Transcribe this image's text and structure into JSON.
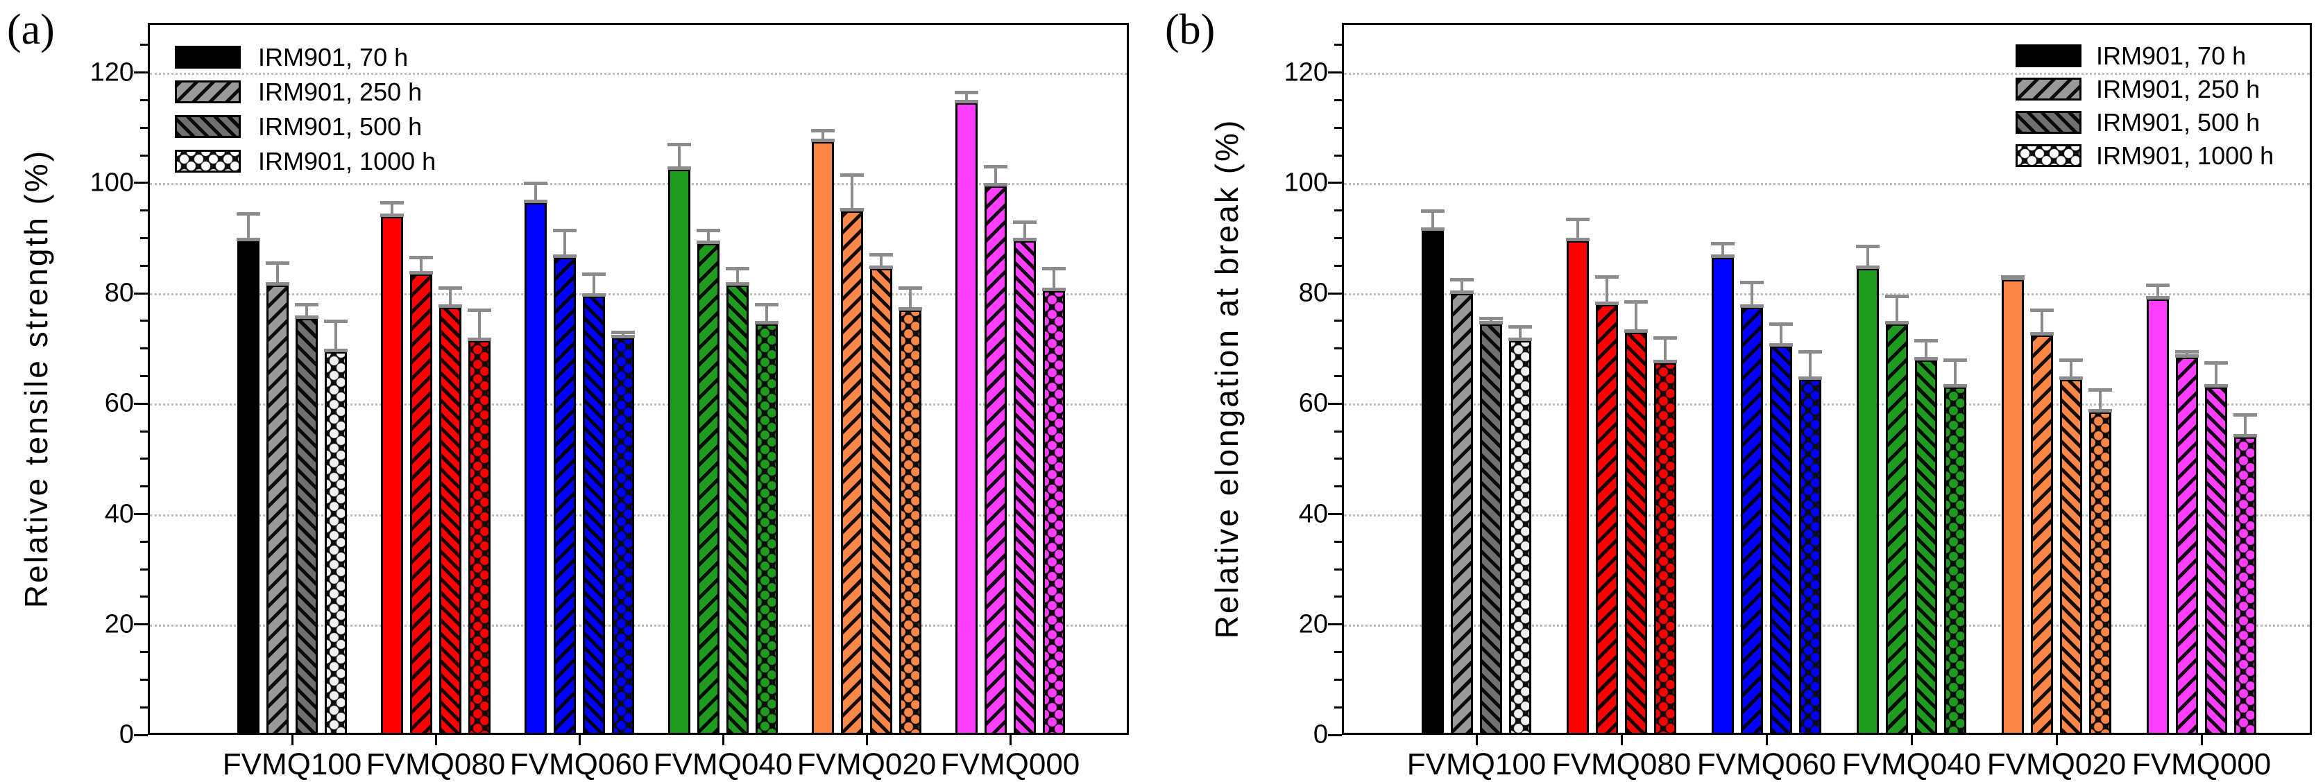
{
  "figure": {
    "panel_a_label": "(a)",
    "panel_b_label": "(b)",
    "ylabel_a": "Relative tensile strength (%)",
    "ylabel_b": "Relative elongation at break (%)"
  },
  "colors": {
    "groups": [
      "#000000",
      "#ff0000",
      "#0000ff",
      "#1f9c1f",
      "#fa8748",
      "#ff3fff"
    ],
    "group0_series_fills": [
      "#000000",
      "#999999",
      "#707070",
      "#f0f0f0"
    ],
    "legend_swatch_fills": [
      "#000000",
      "#999999",
      "#707070",
      "#ffffff"
    ],
    "error_bar": "#8c8c8c",
    "grid": "#bdbdbd",
    "axis": "#000000"
  },
  "chart_data": [
    {
      "type": "bar",
      "panel": "(a)",
      "ylabel": "Relative tensile strength (%)",
      "xlabel": "",
      "categories": [
        "FVMQ100",
        "FVMQ080",
        "FVMQ060",
        "FVMQ040",
        "FVMQ020",
        "FVMQ000"
      ],
      "series": [
        {
          "name": "IRM901, 70 h",
          "pattern": "solid",
          "values": [
            89.5,
            94,
            96.5,
            102.5,
            107.5,
            114.5
          ],
          "errors": [
            5,
            2.5,
            3.5,
            4.5,
            2,
            2
          ]
        },
        {
          "name": "IRM901, 250 h",
          "pattern": "hatch-forward",
          "values": [
            81.5,
            83.5,
            86.5,
            89,
            95,
            99.5
          ],
          "errors": [
            4,
            3,
            5,
            2.5,
            6.5,
            3.5
          ]
        },
        {
          "name": "IRM901, 500 h",
          "pattern": "hatch-backward",
          "values": [
            75.5,
            77.5,
            79.5,
            81.5,
            84.5,
            89.5
          ],
          "errors": [
            2.5,
            3.5,
            4,
            3,
            2.5,
            3.5
          ]
        },
        {
          "name": "IRM901, 1000 h",
          "pattern": "cross-dot",
          "values": [
            69.5,
            71.5,
            72,
            74.5,
            77,
            80.5
          ],
          "errors": [
            5.5,
            5.5,
            1,
            3.5,
            4,
            4
          ]
        }
      ],
      "ylim": [
        0,
        129
      ],
      "yticks": [
        0,
        20,
        40,
        60,
        80,
        100,
        120
      ],
      "ytick_minor_step": 5,
      "grid": "horizontal-dotted",
      "legend_position": "top-left"
    },
    {
      "type": "bar",
      "panel": "(b)",
      "ylabel": "Relative elongation at break (%)",
      "xlabel": "",
      "categories": [
        "FVMQ100",
        "FVMQ080",
        "FVMQ060",
        "FVMQ040",
        "FVMQ020",
        "FVMQ000"
      ],
      "series": [
        {
          "name": "IRM901, 70 h",
          "pattern": "solid",
          "values": [
            91.5,
            89.5,
            86.5,
            84.5,
            82.5,
            79
          ],
          "errors": [
            3.5,
            4,
            2.5,
            4,
            0.5,
            2.5
          ]
        },
        {
          "name": "IRM901, 250 h",
          "pattern": "hatch-forward",
          "values": [
            80,
            78,
            77.5,
            74.5,
            72.5,
            68.5
          ],
          "errors": [
            2.5,
            5,
            4.5,
            5,
            4.5,
            1
          ]
        },
        {
          "name": "IRM901, 500 h",
          "pattern": "hatch-backward",
          "values": [
            74.5,
            73,
            70.5,
            68,
            64.5,
            63
          ],
          "errors": [
            1,
            5.5,
            4,
            3.5,
            3.5,
            4.5
          ]
        },
        {
          "name": "IRM901, 1000 h",
          "pattern": "cross-dot",
          "values": [
            71.5,
            67.5,
            64.5,
            63,
            58.5,
            54
          ],
          "errors": [
            2.5,
            4.5,
            5,
            5,
            4,
            4
          ]
        }
      ],
      "ylim": [
        0,
        129
      ],
      "yticks": [
        0,
        20,
        40,
        60,
        80,
        100,
        120
      ],
      "ytick_minor_step": 5,
      "grid": "horizontal-dotted",
      "legend_position": "top-right"
    }
  ]
}
